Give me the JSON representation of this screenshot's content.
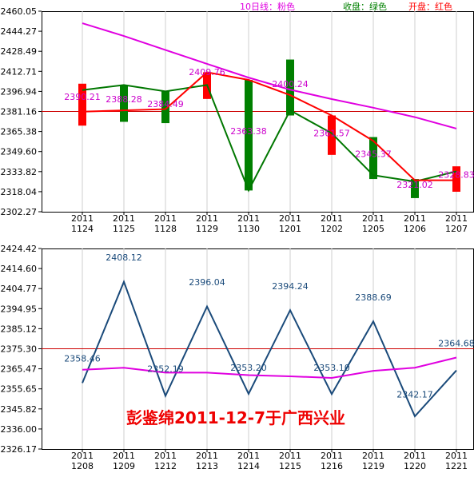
{
  "legend": {
    "ma_label": "10日线：粉色",
    "close_label": "收盘：绿色",
    "open_label": "开盘：红色"
  },
  "watermark": "彭鉴绵2011-12-7于广西兴业",
  "colors": {
    "up_candle": "#ff0000",
    "down_candle": "#008000",
    "close_line": "#007700",
    "open_line": "#ff0000",
    "ma10_line": "#e000e0",
    "reference_line": "#cc0000",
    "top_labels": "#cc00cc",
    "bottom_line": "#1a4a7a",
    "bottom_labels": "#1a4a7a",
    "watermark": "#ee0000"
  },
  "chart_data": [
    {
      "type": "candlestick",
      "categories": [
        "2011\n1124",
        "2011\n1125",
        "2011\n1128",
        "2011\n1129",
        "2011\n1130",
        "2011\n1201",
        "2011\n1202",
        "2011\n1205",
        "2011\n1206",
        "2011\n1207"
      ],
      "y_ticks": [
        "2460.05",
        "2444.27",
        "2428.49",
        "2412.71",
        "2396.94",
        "2381.16",
        "2365.38",
        "2349.60",
        "2333.82",
        "2318.04",
        "2302.27"
      ],
      "ylim": [
        2302.27,
        2460.05
      ],
      "reference_value": 2381.16,
      "candles": [
        {
          "open": 2381,
          "close": 2398,
          "high": 2403,
          "low": 2370,
          "color": "up"
        },
        {
          "open": 2382,
          "close": 2402,
          "high": 2402,
          "low": 2373,
          "color": "down"
        },
        {
          "open": 2383,
          "close": 2397,
          "high": 2397,
          "low": 2372,
          "color": "down"
        },
        {
          "open": 2412,
          "close": 2402,
          "high": 2412,
          "low": 2391,
          "color": "up"
        },
        {
          "open": 2406,
          "close": 2319,
          "high": 2406,
          "low": 2319,
          "color": "down"
        },
        {
          "open": 2394,
          "close": 2382,
          "high": 2422,
          "low": 2378,
          "color": "down"
        },
        {
          "open": 2378,
          "close": 2364,
          "high": 2378,
          "low": 2347,
          "color": "up"
        },
        {
          "open": 2358,
          "close": 2331,
          "high": 2361,
          "low": 2328,
          "color": "down"
        },
        {
          "open": 2327,
          "close": 2326,
          "high": 2328,
          "low": 2313,
          "color": "down"
        },
        {
          "open": 2327,
          "close": 2334,
          "high": 2338,
          "low": 2318,
          "color": "up"
        }
      ],
      "ma10": [
        2450.6,
        2440.5,
        2429.5,
        2418.6,
        2407.8,
        2398.3,
        2390.9,
        2384.1,
        2376.7,
        2367.7
      ],
      "point_labels": [
        {
          "index": 0,
          "text": "2390.21",
          "y": 2390.21
        },
        {
          "index": 1,
          "text": "2388.28",
          "y": 2388.28
        },
        {
          "index": 2,
          "text": "2384.49",
          "y": 2384.49
        },
        {
          "index": 3,
          "text": "2409.76",
          "y": 2409.76
        },
        {
          "index": 4,
          "text": "2363.38",
          "y": 2363.38
        },
        {
          "index": 5,
          "text": "2400.24",
          "y": 2400.24
        },
        {
          "index": 6,
          "text": "2361.57",
          "y": 2361.57
        },
        {
          "index": 7,
          "text": "2345.37",
          "y": 2345.37
        },
        {
          "index": 8,
          "text": "2321.02",
          "y": 2321.02
        },
        {
          "index": 9,
          "text": "2328.83",
          "y": 2328.83
        }
      ]
    },
    {
      "type": "line",
      "categories": [
        "2011\n1208",
        "2011\n1209",
        "2011\n1212",
        "2011\n1213",
        "2011\n1214",
        "2011\n1215",
        "2011\n1216",
        "2011\n1219",
        "2011\n1220",
        "2011\n1221"
      ],
      "y_ticks": [
        "2424.42",
        "2414.60",
        "2404.77",
        "2394.95",
        "2385.12",
        "2375.30",
        "2365.47",
        "2355.65",
        "2345.82",
        "2336.00",
        "2326.17"
      ],
      "ylim": [
        2326.17,
        2424.42
      ],
      "reference_value": 2375.3,
      "series": [
        {
          "values": [
            2358.5,
            2408.1,
            2352.2,
            2396.0,
            2353.2,
            2394.2,
            2353.1,
            2388.7,
            2342.2,
            2364.7
          ]
        },
        {
          "values": [
            2365.0,
            2366.0,
            2363.6,
            2363.6,
            2362.4,
            2361.8,
            2361.0,
            2364.5,
            2366.0,
            2371.0
          ]
        }
      ],
      "point_labels": [
        {
          "index": 0,
          "text": "2358.46",
          "y": 2369.0
        },
        {
          "index": 1,
          "text": "2408.12",
          "y": 2418.5
        },
        {
          "index": 2,
          "text": "2352.19",
          "y": 2364.0
        },
        {
          "index": 3,
          "text": "2396.04",
          "y": 2406.5
        },
        {
          "index": 4,
          "text": "2353.20",
          "y": 2364.5
        },
        {
          "index": 5,
          "text": "2394.24",
          "y": 2404.5
        },
        {
          "index": 6,
          "text": "2353.10",
          "y": 2364.5
        },
        {
          "index": 7,
          "text": "2388.69",
          "y": 2399.0
        },
        {
          "index": 8,
          "text": "2342.17",
          "y": 2351.5
        },
        {
          "index": 9,
          "text": "2364.68",
          "y": 2376.5
        }
      ]
    }
  ]
}
